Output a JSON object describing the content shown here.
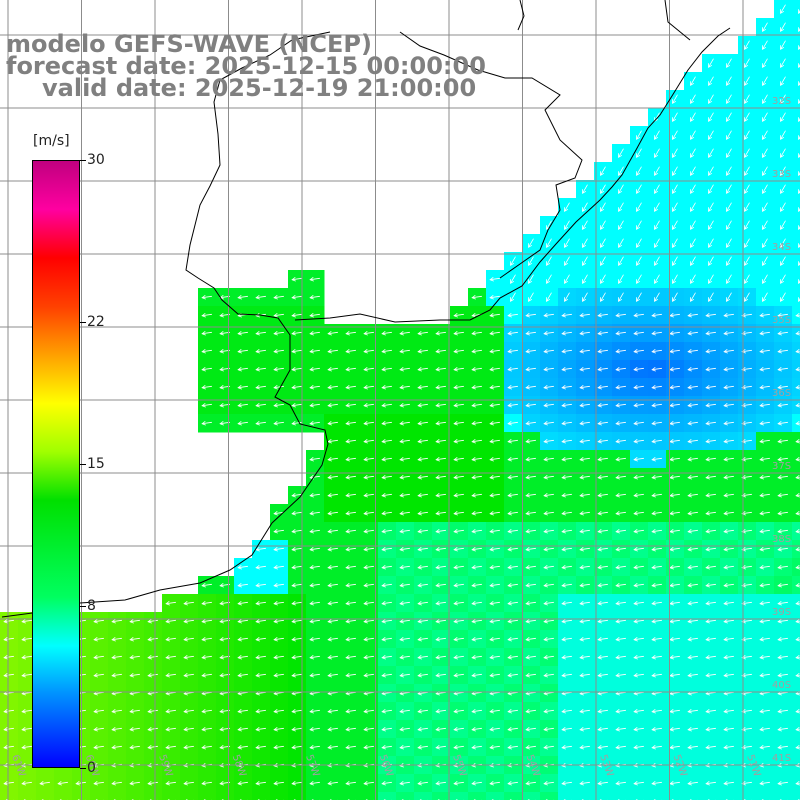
{
  "title": {
    "line1": "modelo GEFS-WAVE (NCEP)",
    "line2": "forecast date: 2025-12-15 00:00:00",
    "line3": "valid date: 2025-12-19 21:00:00"
  },
  "colorbar": {
    "unit": "[m/s]",
    "ticks": [
      "30",
      "22",
      "15",
      "8",
      "0"
    ],
    "tick_values": [
      30,
      22,
      15,
      8,
      0
    ],
    "range": [
      0,
      30
    ],
    "colors": [
      "#0000ff",
      "#00ffff",
      "#00ff00",
      "#ffff00",
      "#ff0000",
      "#c0007f"
    ]
  },
  "map": {
    "lat_labels": [
      "32S",
      "33S",
      "34S",
      "35S",
      "36S",
      "37S",
      "38S",
      "39S",
      "40S",
      "41S"
    ],
    "lon_labels": [
      "61W",
      "60W",
      "59W",
      "58W",
      "57W",
      "56W",
      "55W",
      "54W",
      "53W",
      "52W",
      "51W"
    ],
    "land_color": "#ffffff",
    "coast_color": "#000000",
    "grid_color": "#808080",
    "arrow_color": "#ffffff"
  }
}
